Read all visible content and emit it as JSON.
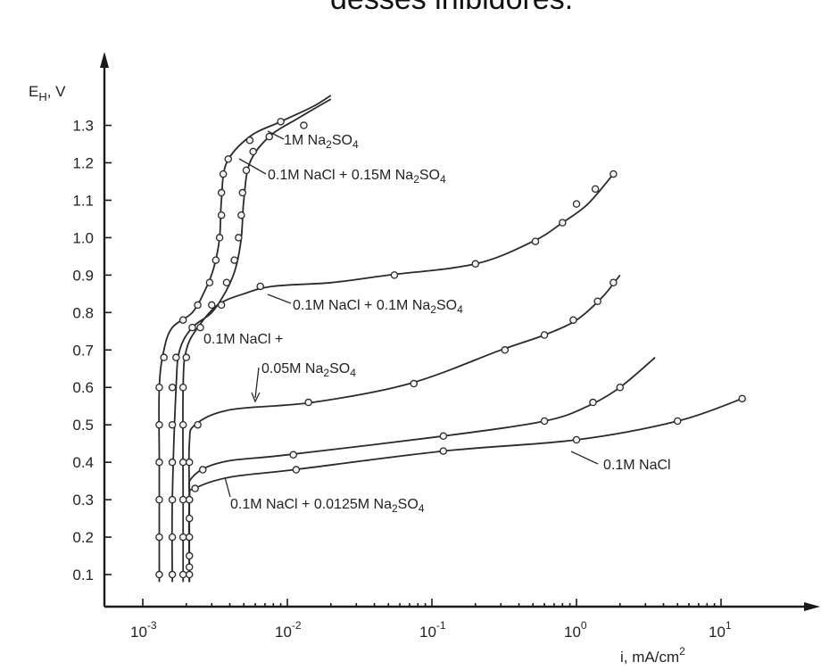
{
  "header": {
    "title_fragment": "desses inibidores."
  },
  "chart_data": {
    "type": "line",
    "ylabel": "E_H, V",
    "xlabel": "i, mA/cm²",
    "xscale": "log",
    "xlim": [
      0.00065,
      30
    ],
    "ylim": [
      0.0,
      1.45
    ],
    "x_ticks": [
      {
        "value": 0.001,
        "base": "10",
        "exp": "-3"
      },
      {
        "value": 0.01,
        "base": "10",
        "exp": "-2"
      },
      {
        "value": 0.1,
        "base": "10",
        "exp": "-1"
      },
      {
        "value": 1,
        "base": "10",
        "exp": "0"
      },
      {
        "value": 10,
        "base": "10",
        "exp": "1"
      }
    ],
    "y_ticks": [
      {
        "value": 0.1,
        "label": "0.1"
      },
      {
        "value": 0.2,
        "label": "0.2"
      },
      {
        "value": 0.3,
        "label": "0.3"
      },
      {
        "value": 0.4,
        "label": "0.4"
      },
      {
        "value": 0.5,
        "label": "0.5"
      },
      {
        "value": 0.6,
        "label": "0.6"
      },
      {
        "value": 0.7,
        "label": "0.7"
      },
      {
        "value": 0.8,
        "label": "0.8"
      },
      {
        "value": 0.9,
        "label": "0.9"
      },
      {
        "value": 1.0,
        "label": "1.0"
      },
      {
        "value": 1.1,
        "label": "1.1"
      },
      {
        "value": 1.2,
        "label": "1.2"
      },
      {
        "value": 1.3,
        "label": "1.3"
      }
    ],
    "series": [
      {
        "name": "1M Na₂SO₄",
        "points": [
          [
            0.0013,
            0.08
          ],
          [
            0.0013,
            0.2
          ],
          [
            0.0013,
            0.4
          ],
          [
            0.0013,
            0.6
          ],
          [
            0.0014,
            0.7
          ],
          [
            0.0016,
            0.76
          ],
          [
            0.0022,
            0.8
          ],
          [
            0.0027,
            0.86
          ],
          [
            0.0031,
            0.92
          ],
          [
            0.0034,
            1.0
          ],
          [
            0.0035,
            1.1
          ],
          [
            0.0038,
            1.2
          ],
          [
            0.0055,
            1.27
          ],
          [
            0.009,
            1.31
          ],
          [
            0.015,
            1.35
          ],
          [
            0.02,
            1.38
          ]
        ],
        "markers": [
          [
            0.0013,
            0.1
          ],
          [
            0.0013,
            0.2
          ],
          [
            0.0013,
            0.3
          ],
          [
            0.0013,
            0.4
          ],
          [
            0.0013,
            0.5
          ],
          [
            0.0013,
            0.6
          ],
          [
            0.0014,
            0.68
          ],
          [
            0.0019,
            0.78
          ],
          [
            0.0024,
            0.82
          ],
          [
            0.0029,
            0.88
          ],
          [
            0.0032,
            0.94
          ],
          [
            0.0034,
            1.0
          ],
          [
            0.0035,
            1.06
          ],
          [
            0.0035,
            1.12
          ],
          [
            0.0036,
            1.17
          ],
          [
            0.0039,
            1.21
          ],
          [
            0.0055,
            1.26
          ],
          [
            0.009,
            1.31
          ],
          [
            0.013,
            1.3
          ]
        ]
      },
      {
        "name": "0.1M NaCl + 0.15M Na₂SO₄",
        "points": [
          [
            0.0016,
            0.08
          ],
          [
            0.0016,
            0.3
          ],
          [
            0.0017,
            0.6
          ],
          [
            0.0018,
            0.7
          ],
          [
            0.0022,
            0.76
          ],
          [
            0.003,
            0.8
          ],
          [
            0.0038,
            0.86
          ],
          [
            0.0044,
            0.92
          ],
          [
            0.0048,
            1.0
          ],
          [
            0.005,
            1.1
          ],
          [
            0.0055,
            1.2
          ],
          [
            0.0075,
            1.27
          ],
          [
            0.012,
            1.32
          ],
          [
            0.02,
            1.37
          ]
        ],
        "markers": [
          [
            0.0016,
            0.1
          ],
          [
            0.0016,
            0.2
          ],
          [
            0.0016,
            0.3
          ],
          [
            0.0016,
            0.4
          ],
          [
            0.0016,
            0.5
          ],
          [
            0.0016,
            0.6
          ],
          [
            0.0017,
            0.68
          ],
          [
            0.0022,
            0.76
          ],
          [
            0.003,
            0.82
          ],
          [
            0.0038,
            0.88
          ],
          [
            0.0043,
            0.94
          ],
          [
            0.0046,
            1.0
          ],
          [
            0.0048,
            1.06
          ],
          [
            0.0049,
            1.12
          ],
          [
            0.0052,
            1.18
          ],
          [
            0.0058,
            1.23
          ],
          [
            0.0075,
            1.27
          ]
        ]
      },
      {
        "name": "0.1M NaCl + 0.1M Na₂SO₄",
        "points": [
          [
            0.0019,
            0.08
          ],
          [
            0.0019,
            0.3
          ],
          [
            0.0019,
            0.6
          ],
          [
            0.002,
            0.7
          ],
          [
            0.0024,
            0.76
          ],
          [
            0.0033,
            0.82
          ],
          [
            0.005,
            0.85
          ],
          [
            0.008,
            0.87
          ],
          [
            0.02,
            0.88
          ],
          [
            0.05,
            0.9
          ],
          [
            0.2,
            0.93
          ],
          [
            0.5,
            0.99
          ],
          [
            0.8,
            1.04
          ],
          [
            1.2,
            1.09
          ],
          [
            1.8,
            1.17
          ]
        ],
        "markers": [
          [
            0.0019,
            0.1
          ],
          [
            0.0019,
            0.2
          ],
          [
            0.0019,
            0.3
          ],
          [
            0.0019,
            0.4
          ],
          [
            0.0019,
            0.5
          ],
          [
            0.0019,
            0.6
          ],
          [
            0.002,
            0.68
          ],
          [
            0.0025,
            0.76
          ],
          [
            0.0035,
            0.82
          ],
          [
            0.0065,
            0.87
          ],
          [
            0.055,
            0.9
          ],
          [
            0.2,
            0.93
          ],
          [
            0.52,
            0.99
          ],
          [
            0.8,
            1.04
          ],
          [
            1.0,
            1.09
          ],
          [
            1.35,
            1.13
          ],
          [
            1.8,
            1.17
          ]
        ]
      },
      {
        "name": "0.1M NaCl + 0.05M Na₂SO₄",
        "points": [
          [
            0.0021,
            0.08
          ],
          [
            0.0021,
            0.3
          ],
          [
            0.0021,
            0.45
          ],
          [
            0.0023,
            0.5
          ],
          [
            0.004,
            0.54
          ],
          [
            0.015,
            0.56
          ],
          [
            0.07,
            0.61
          ],
          [
            0.3,
            0.7
          ],
          [
            0.6,
            0.74
          ],
          [
            1.0,
            0.78
          ],
          [
            1.5,
            0.84
          ],
          [
            2.0,
            0.9
          ]
        ],
        "markers": [
          [
            0.0021,
            0.1
          ],
          [
            0.0021,
            0.2
          ],
          [
            0.0021,
            0.3
          ],
          [
            0.0021,
            0.4
          ],
          [
            0.0024,
            0.5
          ],
          [
            0.014,
            0.56
          ],
          [
            0.075,
            0.61
          ],
          [
            0.32,
            0.7
          ],
          [
            0.6,
            0.74
          ],
          [
            0.95,
            0.78
          ],
          [
            1.4,
            0.83
          ],
          [
            1.8,
            0.88
          ]
        ]
      },
      {
        "name": "0.1M NaCl",
        "points": [
          [
            0.0021,
            0.08
          ],
          [
            0.0021,
            0.3
          ],
          [
            0.0022,
            0.36
          ],
          [
            0.0035,
            0.4
          ],
          [
            0.01,
            0.42
          ],
          [
            0.12,
            0.47
          ],
          [
            0.6,
            0.51
          ],
          [
            1.2,
            0.55
          ],
          [
            2.0,
            0.6
          ],
          [
            3.5,
            0.68
          ]
        ],
        "markers": [
          [
            0.0021,
            0.15
          ],
          [
            0.0021,
            0.3
          ],
          [
            0.0026,
            0.38
          ],
          [
            0.011,
            0.42
          ],
          [
            0.12,
            0.47
          ],
          [
            0.6,
            0.51
          ],
          [
            1.3,
            0.56
          ],
          [
            2.0,
            0.6
          ]
        ]
      },
      {
        "name": "0.1M NaCl + 0.0125M Na₂SO₄",
        "points": [
          [
            0.0021,
            0.08
          ],
          [
            0.0021,
            0.3
          ],
          [
            0.0023,
            0.33
          ],
          [
            0.004,
            0.36
          ],
          [
            0.011,
            0.38
          ],
          [
            0.12,
            0.43
          ],
          [
            1.0,
            0.46
          ],
          [
            5.0,
            0.51
          ],
          [
            14,
            0.57
          ]
        ],
        "markers": [
          [
            0.0021,
            0.12
          ],
          [
            0.0021,
            0.25
          ],
          [
            0.0023,
            0.33
          ],
          [
            0.0115,
            0.38
          ],
          [
            0.12,
            0.43
          ],
          [
            1.0,
            0.46
          ],
          [
            5.0,
            0.51
          ],
          [
            14,
            0.57
          ]
        ]
      }
    ],
    "annotations": [
      {
        "id": "s0",
        "text_main": "1M Na",
        "text_sub": "2",
        "text_tail": "SO",
        "text_sub2": "4",
        "text_tail2": ""
      },
      {
        "id": "s1",
        "text_main": "0.1M NaCl + 0.15M Na",
        "text_sub": "2",
        "text_tail": "SO",
        "text_sub2": "4",
        "text_tail2": ""
      },
      {
        "id": "s2",
        "text_main": "0.1M NaCl + 0.1M Na",
        "text_sub": "2",
        "text_tail": "SO",
        "text_sub2": "4",
        "text_tail2": ""
      },
      {
        "id": "s3a",
        "text_main": "0.1M NaCl +",
        "text_sub": "",
        "text_tail": "",
        "text_sub2": "",
        "text_tail2": ""
      },
      {
        "id": "s3b",
        "text_main": "0.05M Na",
        "text_sub": "2",
        "text_tail": "SO",
        "text_sub2": "4",
        "text_tail2": ""
      },
      {
        "id": "s4",
        "text_main": "0.1M NaCl",
        "text_sub": "",
        "text_tail": "",
        "text_sub2": "",
        "text_tail2": ""
      },
      {
        "id": "s5",
        "text_main": "0.1M NaCl + 0.0125M Na",
        "text_sub": "2",
        "text_tail": "SO",
        "text_sub2": "4",
        "text_tail2": ""
      }
    ],
    "axis_text": {
      "y_main": "E",
      "y_sub": "H",
      "y_tail": ", V",
      "x_main": "i, mA/cm",
      "x_sup": "2"
    },
    "grid": false
  }
}
